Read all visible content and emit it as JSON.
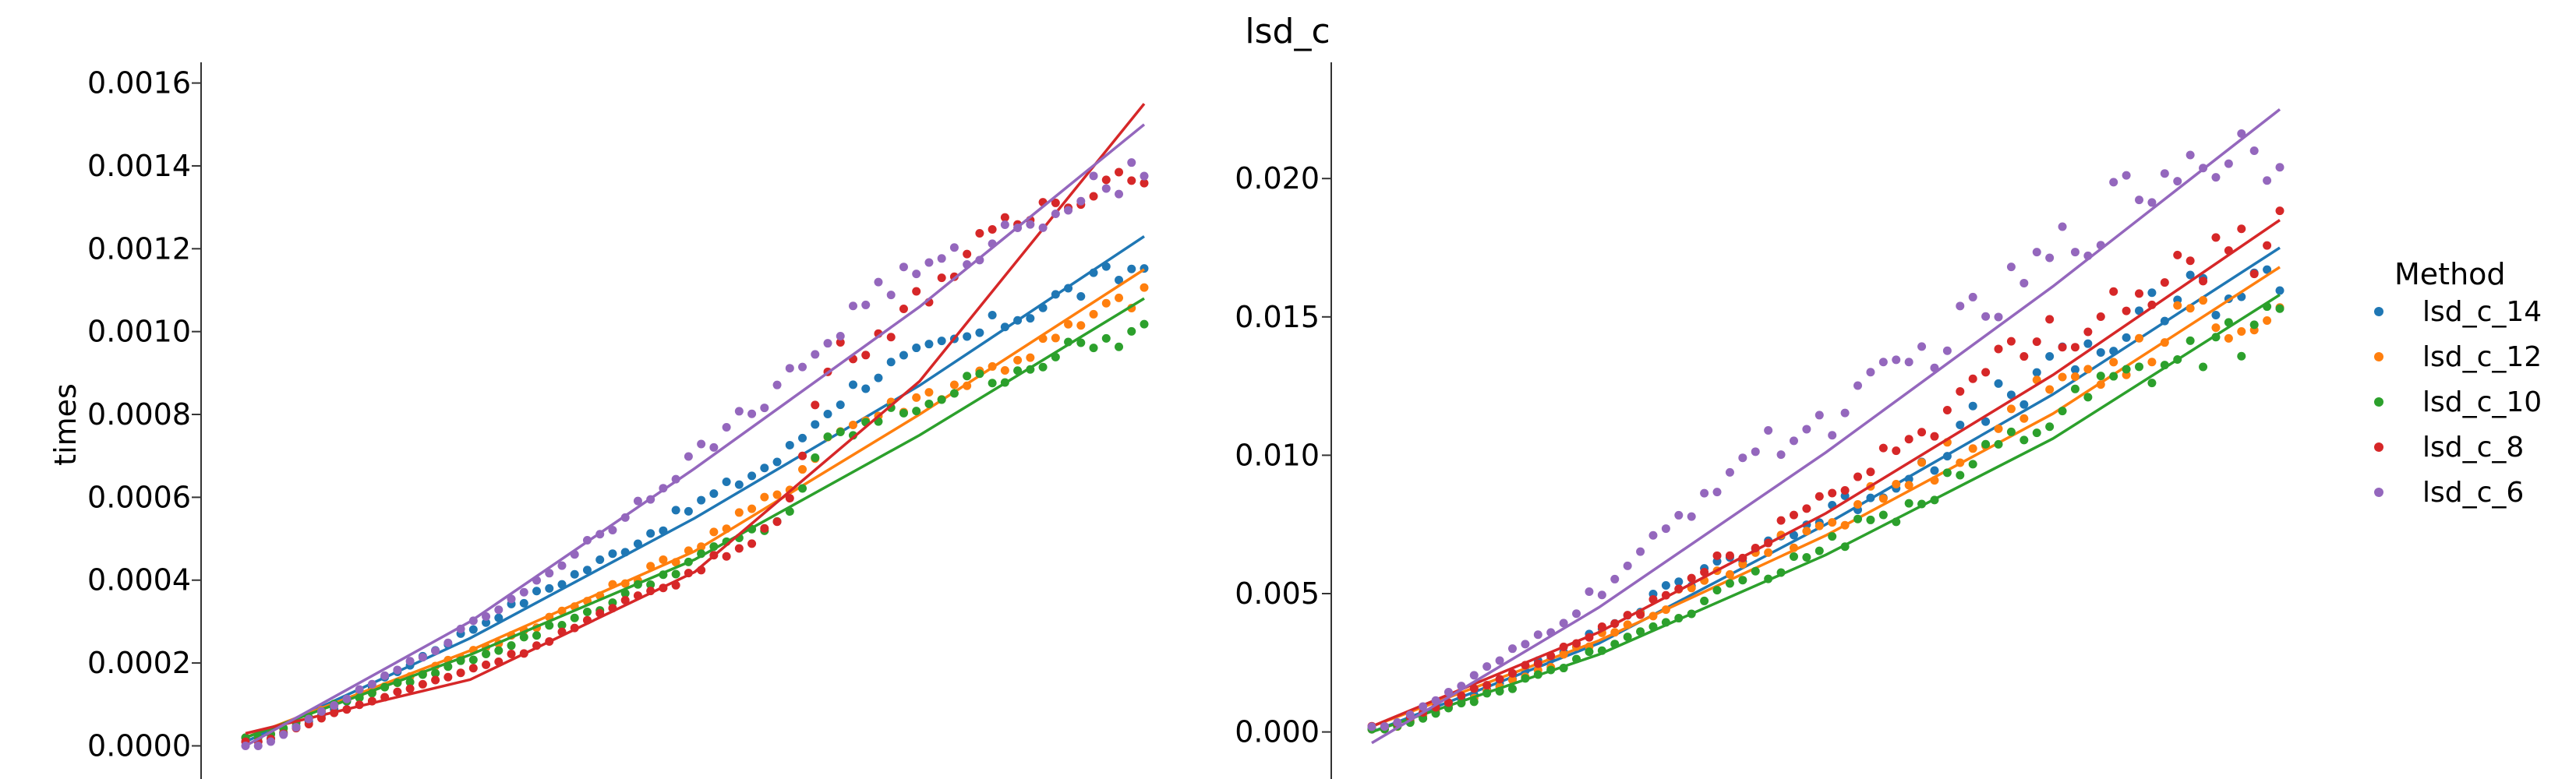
{
  "figure": {
    "title": "lsd_c",
    "legend_title": "Method"
  },
  "colors": {
    "lsd_c_14": "#1f77b4",
    "lsd_c_12": "#ff7f0e",
    "lsd_c_10": "#2ca02c",
    "lsd_c_8": "#d62728",
    "lsd_c_6": "#9467bd"
  },
  "chart_data": [
    {
      "type": "scatter",
      "title": "lsd_c",
      "xlabel": "",
      "ylabel": "times",
      "ylim": [
        -8e-05,
        0.00165
      ],
      "yticks": [
        0.0,
        0.0002,
        0.0004,
        0.0006,
        0.0008,
        0.001,
        0.0012,
        0.0014,
        0.0016
      ],
      "ytick_labels": [
        "0.0000",
        "0.0002",
        "0.0004",
        "0.0006",
        "0.0008",
        "0.0010",
        "0.0012",
        "0.0014",
        "0.0016"
      ],
      "x_range": [
        0,
        1
      ],
      "grid": false,
      "legend": "outside right",
      "series": [
        {
          "name": "lsd_c_14",
          "key": "lsd_c_14",
          "points": [
            [
              0.02,
              1e-05
            ],
            [
              0.1,
              9e-05
            ],
            [
              0.2,
              0.00022
            ],
            [
              0.3,
              0.00034
            ],
            [
              0.4,
              0.00045
            ],
            [
              0.5,
              0.00058
            ],
            [
              0.6,
              0.0007
            ],
            [
              0.65,
              0.00082
            ],
            [
              0.7,
              0.0009
            ],
            [
              0.8,
              0.00098
            ],
            [
              0.9,
              0.00108
            ],
            [
              1.0,
              0.00116
            ]
          ],
          "fit": [
            [
              0,
              1e-05
            ],
            [
              0.25,
              0.00026
            ],
            [
              0.5,
              0.00055
            ],
            [
              0.75,
              0.00087
            ],
            [
              1.0,
              0.00123
            ]
          ]
        },
        {
          "name": "lsd_c_12",
          "key": "lsd_c_12",
          "points": [
            [
              0.02,
              2e-05
            ],
            [
              0.1,
              0.0001
            ],
            [
              0.2,
              0.00018
            ],
            [
              0.3,
              0.00027
            ],
            [
              0.4,
              0.00037
            ],
            [
              0.5,
              0.00048
            ],
            [
              0.6,
              0.00062
            ],
            [
              0.65,
              0.00075
            ],
            [
              0.7,
              0.0008
            ],
            [
              0.8,
              0.00088
            ],
            [
              0.9,
              0.00098
            ],
            [
              1.0,
              0.0011
            ]
          ],
          "fit": [
            [
              0,
              2e-05
            ],
            [
              0.25,
              0.00023
            ],
            [
              0.5,
              0.00047
            ],
            [
              0.75,
              0.0008
            ],
            [
              1.0,
              0.00115
            ]
          ]
        },
        {
          "name": "lsd_c_10",
          "key": "lsd_c_10",
          "points": [
            [
              0.02,
              2e-05
            ],
            [
              0.1,
              0.0001
            ],
            [
              0.2,
              0.00017
            ],
            [
              0.3,
              0.00025
            ],
            [
              0.4,
              0.00034
            ],
            [
              0.5,
              0.00045
            ],
            [
              0.6,
              0.00055
            ],
            [
              0.65,
              0.00074
            ],
            [
              0.7,
              0.00078
            ],
            [
              0.8,
              0.00087
            ],
            [
              0.9,
              0.00094
            ],
            [
              1.0,
              0.001
            ]
          ],
          "fit": [
            [
              0,
              2e-05
            ],
            [
              0.25,
              0.00022
            ],
            [
              0.5,
              0.00045
            ],
            [
              0.75,
              0.00075
            ],
            [
              1.0,
              0.00108
            ]
          ]
        },
        {
          "name": "lsd_c_8",
          "key": "lsd_c_8",
          "points": [
            [
              0.02,
              1e-05
            ],
            [
              0.1,
              8e-05
            ],
            [
              0.2,
              0.00015
            ],
            [
              0.3,
              0.00022
            ],
            [
              0.4,
              0.00032
            ],
            [
              0.5,
              0.00042
            ],
            [
              0.6,
              0.00055
            ],
            [
              0.65,
              0.00094
            ],
            [
              0.7,
              0.00098
            ],
            [
              0.8,
              0.00118
            ],
            [
              0.9,
              0.00132
            ],
            [
              1.0,
              0.0014
            ]
          ],
          "fit": [
            [
              0,
              3e-05
            ],
            [
              0.25,
              0.00016
            ],
            [
              0.5,
              0.00042
            ],
            [
              0.75,
              0.00088
            ],
            [
              1.0,
              0.00155
            ]
          ]
        },
        {
          "name": "lsd_c_6",
          "key": "lsd_c_6",
          "points": [
            [
              0.02,
              0.0
            ],
            [
              0.1,
              0.0001
            ],
            [
              0.2,
              0.00022
            ],
            [
              0.3,
              0.00036
            ],
            [
              0.4,
              0.00052
            ],
            [
              0.5,
              0.0007
            ],
            [
              0.6,
              0.00088
            ],
            [
              0.65,
              0.00098
            ],
            [
              0.7,
              0.0011
            ],
            [
              0.8,
              0.00118
            ],
            [
              0.9,
              0.0013
            ],
            [
              1.0,
              0.0014
            ]
          ],
          "fit": [
            [
              0,
              0.0
            ],
            [
              0.25,
              0.0003
            ],
            [
              0.5,
              0.00067
            ],
            [
              0.75,
              0.00106
            ],
            [
              1.0,
              0.0015
            ]
          ]
        }
      ]
    },
    {
      "type": "scatter",
      "title": "",
      "xlabel": "",
      "ylabel": "",
      "ylim": [
        -0.0017,
        0.0242
      ],
      "yticks": [
        0.0,
        0.005,
        0.01,
        0.015,
        0.02
      ],
      "ytick_labels": [
        "0.000",
        "0.005",
        "0.010",
        "0.015",
        "0.020"
      ],
      "x_range": [
        0,
        1
      ],
      "grid": false,
      "legend": "outside right",
      "series": [
        {
          "name": "lsd_c_14",
          "key": "lsd_c_14",
          "points": [
            [
              0.02,
              0.0001
            ],
            [
              0.1,
              0.0012
            ],
            [
              0.2,
              0.0027
            ],
            [
              0.3,
              0.0046
            ],
            [
              0.4,
              0.0064
            ],
            [
              0.5,
              0.0078
            ],
            [
              0.6,
              0.0095
            ],
            [
              0.7,
              0.0122
            ],
            [
              0.8,
              0.0138
            ],
            [
              0.9,
              0.0158
            ],
            [
              1.0,
              0.0162
            ]
          ],
          "fit": [
            [
              0,
              0.0
            ],
            [
              0.25,
              0.0032
            ],
            [
              0.5,
              0.0075
            ],
            [
              0.75,
              0.0122
            ],
            [
              1.0,
              0.0175
            ]
          ]
        },
        {
          "name": "lsd_c_12",
          "key": "lsd_c_12",
          "points": [
            [
              0.02,
              0.0001
            ],
            [
              0.1,
              0.0011
            ],
            [
              0.2,
              0.0025
            ],
            [
              0.3,
              0.0042
            ],
            [
              0.4,
              0.006
            ],
            [
              0.5,
              0.0076
            ],
            [
              0.6,
              0.0092
            ],
            [
              0.7,
              0.0115
            ],
            [
              0.8,
              0.0132
            ],
            [
              0.9,
              0.0148
            ],
            [
              1.0,
              0.0152
            ]
          ],
          "fit": [
            [
              0,
              0.0002
            ],
            [
              0.25,
              0.0033
            ],
            [
              0.5,
              0.0071
            ],
            [
              0.75,
              0.0115
            ],
            [
              1.0,
              0.0168
            ]
          ]
        },
        {
          "name": "lsd_c_10",
          "key": "lsd_c_10",
          "points": [
            [
              0.02,
              0.0001
            ],
            [
              0.1,
              0.001
            ],
            [
              0.2,
              0.0022
            ],
            [
              0.3,
              0.0037
            ],
            [
              0.4,
              0.0052
            ],
            [
              0.5,
              0.0066
            ],
            [
              0.6,
              0.0085
            ],
            [
              0.7,
              0.0105
            ],
            [
              0.8,
              0.0125
            ],
            [
              0.9,
              0.0138
            ],
            [
              1.0,
              0.0148
            ]
          ],
          "fit": [
            [
              0,
              0.0
            ],
            [
              0.25,
              0.0028
            ],
            [
              0.5,
              0.0064
            ],
            [
              0.75,
              0.0106
            ],
            [
              1.0,
              0.0158
            ]
          ]
        },
        {
          "name": "lsd_c_8",
          "key": "lsd_c_8",
          "points": [
            [
              0.02,
              0.0002
            ],
            [
              0.1,
              0.0013
            ],
            [
              0.2,
              0.0028
            ],
            [
              0.3,
              0.0045
            ],
            [
              0.4,
              0.0064
            ],
            [
              0.5,
              0.0085
            ],
            [
              0.6,
              0.0108
            ],
            [
              0.7,
              0.0135
            ],
            [
              0.8,
              0.0152
            ],
            [
              0.9,
              0.0168
            ],
            [
              1.0,
              0.0178
            ]
          ],
          "fit": [
            [
              0,
              0.0002
            ],
            [
              0.25,
              0.0036
            ],
            [
              0.5,
              0.0079
            ],
            [
              0.75,
              0.0129
            ],
            [
              1.0,
              0.0185
            ]
          ]
        },
        {
          "name": "lsd_c_6",
          "key": "lsd_c_6",
          "points": [
            [
              0.02,
              0.0002
            ],
            [
              0.1,
              0.0017
            ],
            [
              0.2,
              0.0038
            ],
            [
              0.3,
              0.0064
            ],
            [
              0.4,
              0.0098
            ],
            [
              0.5,
              0.0112
            ],
            [
              0.6,
              0.0135
            ],
            [
              0.7,
              0.0158
            ],
            [
              0.8,
              0.0186
            ],
            [
              0.9,
              0.0208
            ],
            [
              1.0,
              0.0212
            ]
          ],
          "fit": [
            [
              0,
              -0.0004
            ],
            [
              0.25,
              0.0045
            ],
            [
              0.5,
              0.0101
            ],
            [
              0.75,
              0.0161
            ],
            [
              1.0,
              0.0225
            ]
          ]
        }
      ]
    }
  ],
  "legend": {
    "title": "Method",
    "items": [
      {
        "label": "lsd_c_14",
        "key": "lsd_c_14"
      },
      {
        "label": "lsd_c_12",
        "key": "lsd_c_12"
      },
      {
        "label": "lsd_c_10",
        "key": "lsd_c_10"
      },
      {
        "label": "lsd_c_8",
        "key": "lsd_c_8"
      },
      {
        "label": "lsd_c_6",
        "key": "lsd_c_6"
      }
    ]
  }
}
